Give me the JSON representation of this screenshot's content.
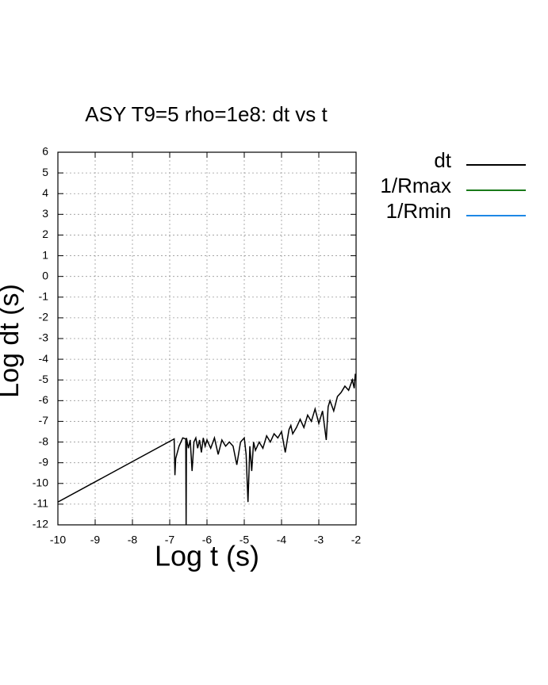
{
  "chart_data": {
    "type": "line",
    "title": "ASY T9=5 rho=1e8: dt vs t",
    "x_label": "Log t (s)",
    "y_label": "Log dt (s)",
    "xlim": [
      -10,
      -2
    ],
    "ylim": [
      -12,
      6
    ],
    "xticks": [
      -10,
      -9,
      -8,
      -7,
      -6,
      -5,
      -4,
      -3,
      -2
    ],
    "yticks": [
      -12,
      -11,
      -10,
      -9,
      -8,
      -7,
      -6,
      -5,
      -4,
      -3,
      -2,
      -1,
      0,
      1,
      2,
      3,
      4,
      5,
      6
    ],
    "grid": true,
    "legend": "outside-right",
    "series": [
      {
        "name": "dt",
        "color": "#000000",
        "x": [
          -10,
          -6.88,
          -6.86,
          -6.84,
          -6.75,
          -6.65,
          -6.57,
          -6.56,
          -6.55,
          -6.5,
          -6.45,
          -6.4,
          -6.35,
          -6.3,
          -6.25,
          -6.2,
          -6.15,
          -6.1,
          -6.05,
          -6.0,
          -5.9,
          -5.8,
          -5.7,
          -5.6,
          -5.5,
          -5.4,
          -5.3,
          -5.2,
          -5.1,
          -5.0,
          -4.95,
          -4.9,
          -4.85,
          -4.8,
          -4.75,
          -4.7,
          -4.6,
          -4.5,
          -4.4,
          -4.3,
          -4.2,
          -4.1,
          -4.0,
          -3.9,
          -3.8,
          -3.75,
          -3.7,
          -3.6,
          -3.5,
          -3.4,
          -3.3,
          -3.2,
          -3.1,
          -3.0,
          -2.9,
          -2.8,
          -2.75,
          -2.7,
          -2.6,
          -2.5,
          -2.4,
          -2.3,
          -2.2,
          -2.1,
          -2.05,
          -2.02
        ],
        "values": [
          -10.9,
          -7.85,
          -9.6,
          -8.8,
          -8.2,
          -7.8,
          -7.85,
          -12,
          -7.8,
          -8.3,
          -7.9,
          -9.4,
          -8.0,
          -7.8,
          -8.3,
          -7.9,
          -8.5,
          -7.8,
          -8.2,
          -7.9,
          -8.3,
          -7.8,
          -8.6,
          -7.9,
          -8.2,
          -8.0,
          -8.2,
          -9.1,
          -8.0,
          -7.8,
          -8.6,
          -10.9,
          -8.2,
          -9.4,
          -8.0,
          -8.4,
          -8.0,
          -8.3,
          -7.7,
          -8.0,
          -7.6,
          -7.8,
          -7.5,
          -8.5,
          -7.4,
          -7.2,
          -7.6,
          -7.3,
          -6.9,
          -7.3,
          -6.7,
          -7.0,
          -6.4,
          -7.1,
          -6.5,
          -7.9,
          -6.3,
          -6.0,
          -6.5,
          -5.8,
          -5.6,
          -5.3,
          -5.5,
          -5.0,
          -5.4,
          -4.7
        ]
      },
      {
        "name": "1/Rmax",
        "color": "#1a7a1a",
        "x": [],
        "values": []
      },
      {
        "name": "1/Rmin",
        "color": "#1e88e5",
        "x": [],
        "values": []
      }
    ]
  }
}
